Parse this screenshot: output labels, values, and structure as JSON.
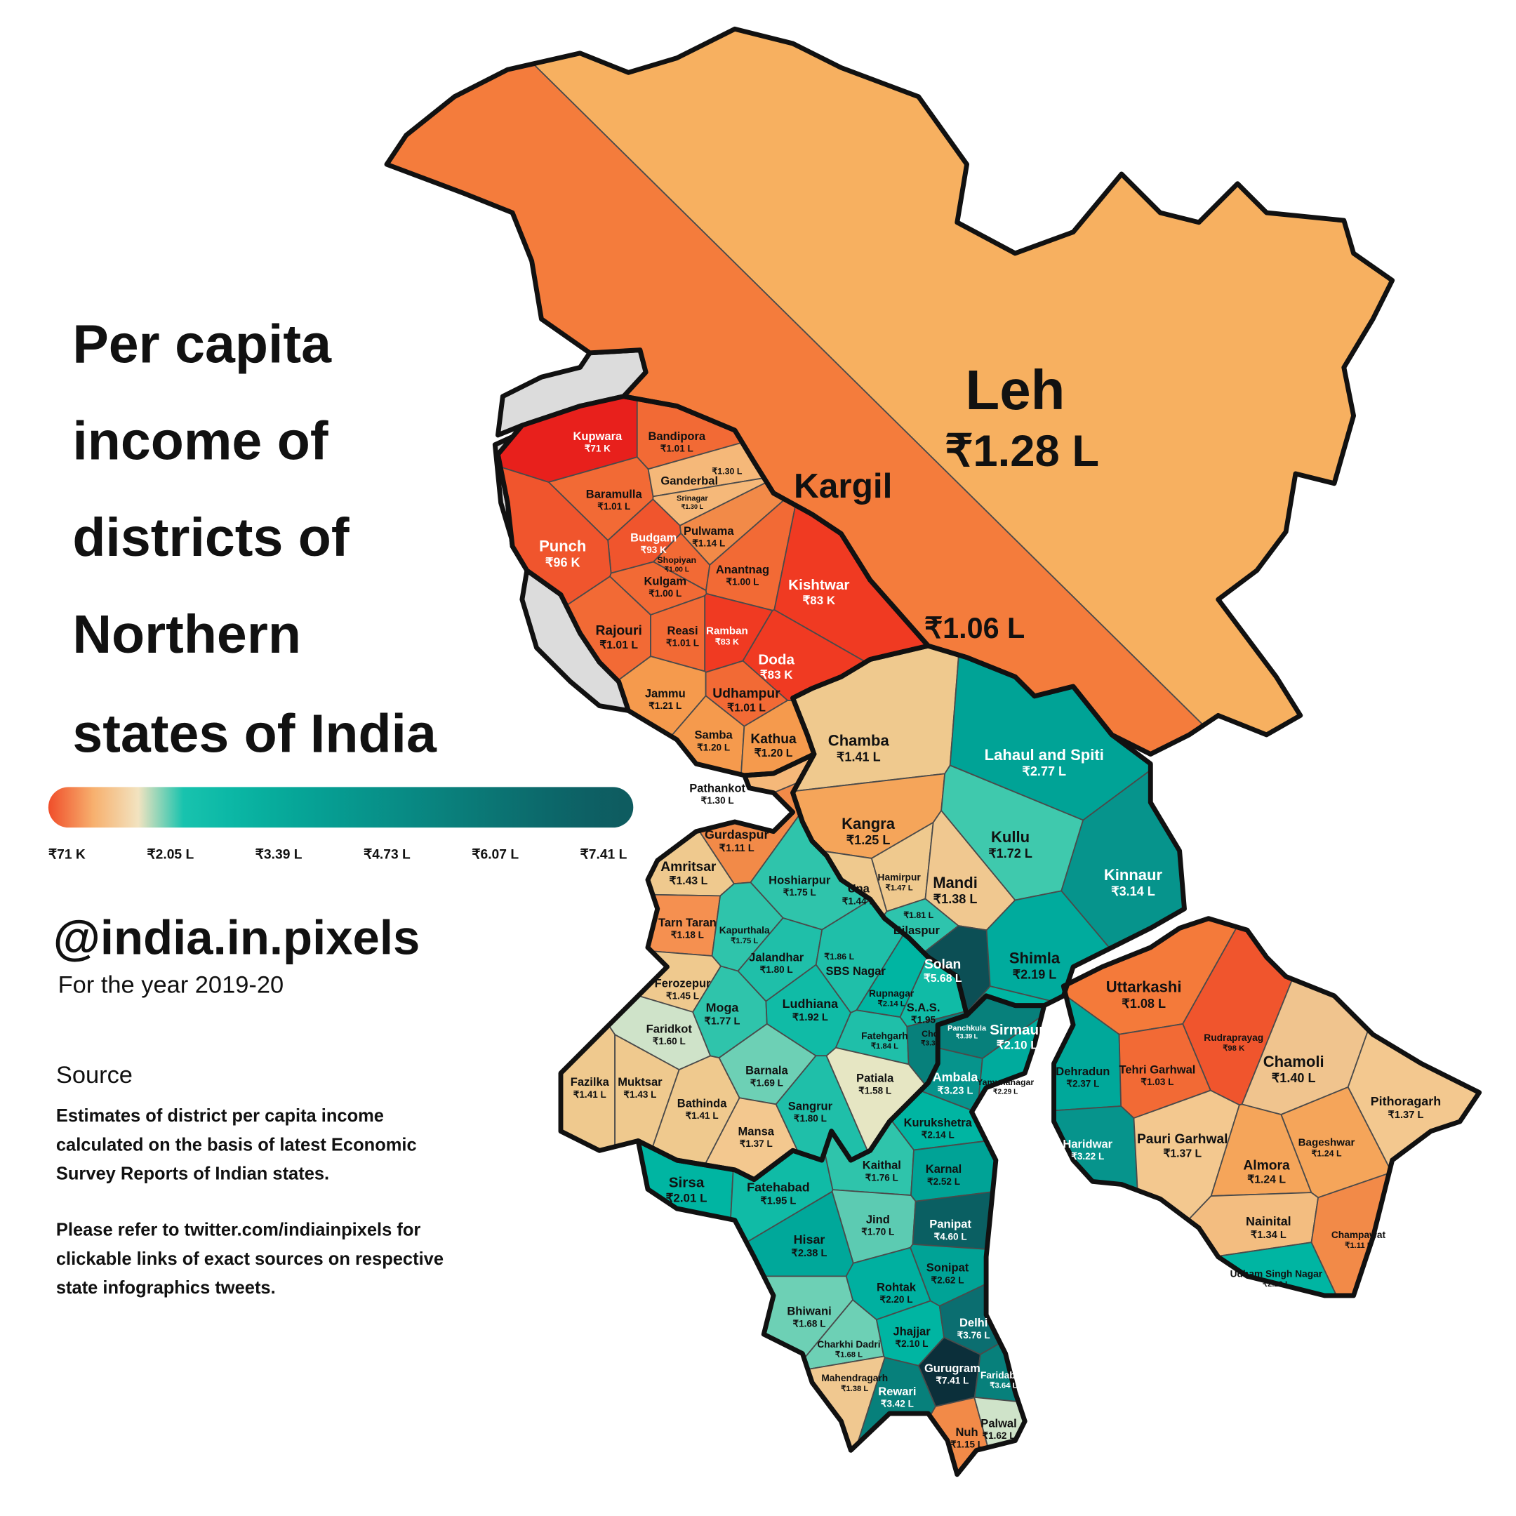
{
  "title_lines": [
    "Per capita",
    "income of",
    "districts of",
    "Northern",
    "states of India"
  ],
  "legend": {
    "colors": [
      "#f04e2a",
      "#f7b06e",
      "#f2e3c0",
      "#18c3ae",
      "#0cb8a6",
      "#07ac9c",
      "#06a094",
      "#07958c",
      "#088a84",
      "#0a7f7b",
      "#0b7473",
      "#0c696b",
      "#0d6064",
      "#0e5b5f"
    ],
    "ticks": [
      "₹71 K",
      "₹2.05 L",
      "₹3.39 L",
      "₹4.73 L",
      "₹6.07 L",
      "₹7.41 L"
    ]
  },
  "handle": "@india.in.pixels",
  "year": "For the year 2019-20",
  "source": {
    "heading": "Source",
    "lines": [
      "Estimates of district per capita income",
      "calculated on the basis of latest Economic",
      "Survey Reports of Indian states."
    ],
    "note_lines": [
      "Please refer to twitter.com/indiainpixels for",
      "clickable links of exact sources on respective",
      "state infographics tweets."
    ]
  },
  "map": {
    "regions": [
      [
        {
          "name": "Leh",
          "value": "₹1.28 L",
          "color": "#f7b060"
        },
        {
          "name": "Kargil",
          "value": "₹1.06 L",
          "color": "#f47c3c"
        }
      ],
      [
        {
          "name": "Kupwara",
          "value": "₹71 K",
          "color": "#e8201c"
        },
        {
          "name": "Bandipora",
          "value": "₹1.01 L",
          "color": "#f26a35"
        },
        {
          "name": "Baramulla",
          "value": "₹1.01 L",
          "color": "#f26a35"
        },
        {
          "name": "Ganderbal",
          "value": "₹1.30 L",
          "color": "#f5b879"
        },
        {
          "name": "Srinagar",
          "value": "₹1.30 L",
          "color": "#f5b879"
        },
        {
          "name": "Budgam",
          "value": "₹93 K",
          "color": "#f0552d"
        },
        {
          "name": "Pulwama",
          "value": "₹1.14 L",
          "color": "#f28a48"
        },
        {
          "name": "Shopiyan",
          "value": "₹1.00 L",
          "color": "#f26a35"
        },
        {
          "name": "Kulgam",
          "value": "₹1.00 L",
          "color": "#f26a35"
        },
        {
          "name": "Anantnag",
          "value": "₹1.00 L",
          "color": "#f26a35"
        },
        {
          "name": "Punch",
          "value": "₹96 K",
          "color": "#f0552d"
        },
        {
          "name": "Rajouri",
          "value": "₹1.01 L",
          "color": "#f26a35"
        },
        {
          "name": "Reasi",
          "value": "₹1.01 L",
          "color": "#f26a35"
        },
        {
          "name": "Ramban",
          "value": "₹83 K",
          "color": "#f03a22"
        },
        {
          "name": "Kishtwar",
          "value": "₹83 K",
          "color": "#f03a22"
        },
        {
          "name": "Doda",
          "value": "₹83 K",
          "color": "#f03a22"
        },
        {
          "name": "Jammu",
          "value": "₹1.21 L",
          "color": "#f59a4d"
        },
        {
          "name": "Udhampur",
          "value": "₹1.01 L",
          "color": "#f26a35"
        },
        {
          "name": "Samba",
          "value": "₹1.20 L",
          "color": "#f59a4d"
        },
        {
          "name": "Kathua",
          "value": "₹1.20 L",
          "color": "#f59a4d"
        }
      ],
      [
        {
          "name": "Chamba",
          "value": "₹1.41 L",
          "color": "#efc98e"
        },
        {
          "name": "Lahaul and Spiti",
          "value": "₹2.77 L",
          "color": "#00a396"
        },
        {
          "name": "Kangra",
          "value": "₹1.25 L",
          "color": "#f5a55a"
        },
        {
          "name": "Kullu",
          "value": "₹1.72 L",
          "color": "#3fc9ad"
        },
        {
          "name": "Kinnaur",
          "value": "₹3.14 L",
          "color": "#06948c"
        },
        {
          "name": "Una",
          "value": "₹1.44 L",
          "color": "#efc98e"
        },
        {
          "name": "Hamirpur",
          "value": "₹1.47 L",
          "color": "#efc98e"
        },
        {
          "name": "Mandi",
          "value": "₹1.38 L",
          "color": "#f0c890"
        },
        {
          "name": "Bilaspur",
          "value": "₹1.81 L",
          "color": "#2ec4ad"
        },
        {
          "name": "Solan",
          "value": "₹5.68 L",
          "color": "#0c4f55"
        },
        {
          "name": "Shimla",
          "value": "₹2.19 L",
          "color": "#00ab9d"
        },
        {
          "name": "Sirmaur",
          "value": "₹2.10 L",
          "color": "#00b5a2"
        }
      ],
      [
        {
          "name": "Pathankot",
          "value": "₹1.30 L",
          "color": "#f5b879"
        },
        {
          "name": "Gurdaspur",
          "value": "₹1.11 L",
          "color": "#f28a48"
        },
        {
          "name": "Amritsar",
          "value": "₹1.43 L",
          "color": "#efc98e"
        },
        {
          "name": "Tarn Taran",
          "value": "₹1.18 L",
          "color": "#f59050"
        },
        {
          "name": "Hoshiarpur",
          "value": "₹1.75 L",
          "color": "#2fc4ab"
        },
        {
          "name": "Kapurthala",
          "value": "₹1.75 L",
          "color": "#2fc4ab"
        },
        {
          "name": "Jalandhar",
          "value": "₹1.80 L",
          "color": "#1fbfa9"
        },
        {
          "name": "SBS Nagar",
          "value": "₹1.86 L",
          "color": "#1fbfa9"
        },
        {
          "name": "Rupnagar",
          "value": "₹2.14 L",
          "color": "#00b5a2"
        },
        {
          "name": "S.A.S.",
          "value": "₹1.95",
          "color": "#10bba6"
        },
        {
          "name": "Ferozepur",
          "value": "₹1.45 L",
          "color": "#efc98e"
        },
        {
          "name": "Faridkot",
          "value": "₹1.60 L",
          "color": "#cfe3c9"
        },
        {
          "name": "Moga",
          "value": "₹1.77 L",
          "color": "#2fc4ab"
        },
        {
          "name": "Ludhiana",
          "value": "₹1.92 L",
          "color": "#10bba6"
        },
        {
          "name": "Fatehgarh",
          "value": "₹1.84 L",
          "color": "#1fbfa9"
        },
        {
          "name": "Chd",
          "value": "₹3.30",
          "color": "#07807b"
        },
        {
          "name": "Fazilka",
          "value": "₹1.41 L",
          "color": "#efc98e"
        },
        {
          "name": "Muktsar",
          "value": "₹1.43 L",
          "color": "#efc98e"
        },
        {
          "name": "Bathinda",
          "value": "₹1.41 L",
          "color": "#efc98e"
        },
        {
          "name": "Barnala",
          "value": "₹1.69 L",
          "color": "#6dd0b5"
        },
        {
          "name": "Mansa",
          "value": "₹1.37 L",
          "color": "#f3c88f"
        },
        {
          "name": "Sangrur",
          "value": "₹1.80 L",
          "color": "#1fbfa9"
        },
        {
          "name": "Patiala",
          "value": "₹1.58 L",
          "color": "#e6e6c3"
        }
      ],
      [
        {
          "name": "Panchkula",
          "value": "₹3.39 L",
          "color": "#07807b"
        },
        {
          "name": "Ambala",
          "value": "₹3.23 L",
          "color": "#06948c"
        },
        {
          "name": "Yamunanagar",
          "value": "₹2.29 L",
          "color": "#00ab9d"
        },
        {
          "name": "Kurukshetra",
          "value": "₹2.14 L",
          "color": "#00b5a2"
        },
        {
          "name": "Sirsa",
          "value": "₹2.01 L",
          "color": "#00b5a2"
        },
        {
          "name": "Fatehabad",
          "value": "₹1.95 L",
          "color": "#10bba6"
        },
        {
          "name": "Kaithal",
          "value": "₹1.76 L",
          "color": "#2fc4ab"
        },
        {
          "name": "Karnal",
          "value": "₹2.52 L",
          "color": "#00a396"
        },
        {
          "name": "Jind",
          "value": "₹1.70 L",
          "color": "#5ccbb2"
        },
        {
          "name": "Panipat",
          "value": "₹4.60 L",
          "color": "#0a5f62"
        },
        {
          "name": "Hisar",
          "value": "₹2.38 L",
          "color": "#00a89a"
        },
        {
          "name": "Sonipat",
          "value": "₹2.62 L",
          "color": "#00a396"
        },
        {
          "name": "Rohtak",
          "value": "₹2.20 L",
          "color": "#00b0a0"
        },
        {
          "name": "Bhiwani",
          "value": "₹1.68 L",
          "color": "#6dd0b5"
        },
        {
          "name": "Charkhi Dadri",
          "value": "₹1.68 L",
          "color": "#6dd0b5"
        },
        {
          "name": "Jhajjar",
          "value": "₹2.10 L",
          "color": "#00b5a2"
        },
        {
          "name": "Delhi",
          "value": "₹3.76 L",
          "color": "#0b6e70"
        },
        {
          "name": "Mahendragarh",
          "value": "₹1.38 L",
          "color": "#f0c890"
        },
        {
          "name": "Rewari",
          "value": "₹3.42 L",
          "color": "#07807b"
        },
        {
          "name": "Gurugram",
          "value": "₹7.41 L",
          "color": "#0b2f3a"
        },
        {
          "name": "Faridabad",
          "value": "₹3.64 L",
          "color": "#07807b"
        },
        {
          "name": "Nuh",
          "value": "₹1.15 L",
          "color": "#f28a48"
        },
        {
          "name": "Palwal",
          "value": "₹1.62 L",
          "color": "#cfe3c9"
        }
      ],
      [
        {
          "name": "Uttarkashi",
          "value": "₹1.08 L",
          "color": "#f47a3a"
        },
        {
          "name": "Rudraprayag",
          "value": "₹98 K",
          "color": "#f0552d"
        },
        {
          "name": "Chamoli",
          "value": "₹1.40 L",
          "color": "#f0c48e"
        },
        {
          "name": "Dehradun",
          "value": "₹2.37 L",
          "color": "#00a89a"
        },
        {
          "name": "Tehri Garhwal",
          "value": "₹1.03 L",
          "color": "#f26a35"
        },
        {
          "name": "Pithoragarh",
          "value": "₹1.37 L",
          "color": "#f3c88f"
        },
        {
          "name": "Haridwar",
          "value": "₹3.22 L",
          "color": "#06948c"
        },
        {
          "name": "Pauri Garhwal",
          "value": "₹1.37 L",
          "color": "#f3c88f"
        },
        {
          "name": "Bageshwar",
          "value": "₹1.24 L",
          "color": "#f5a55a"
        },
        {
          "name": "Almora",
          "value": "₹1.24 L",
          "color": "#f5a55a"
        },
        {
          "name": "Nainital",
          "value": "₹1.34 L",
          "color": "#f3bd80"
        },
        {
          "name": "Champawat",
          "value": "₹1.11 L",
          "color": "#f28a48"
        },
        {
          "name": "Udham Singh Nagar",
          "value": "₹2.20 L",
          "color": "#00b5a2"
        }
      ]
    ]
  }
}
